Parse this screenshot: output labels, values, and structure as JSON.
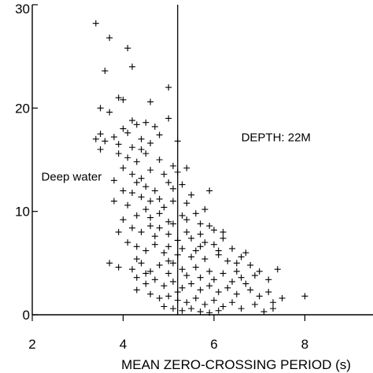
{
  "chart_data": {
    "type": "scatter",
    "title": "",
    "xlabel": "MEAN ZERO-CROSSING PERIOD (s)",
    "ylabel": "",
    "xlim": [
      2,
      9.5
    ],
    "ylim": [
      0,
      30
    ],
    "x_ticks": [
      2,
      4,
      6,
      8
    ],
    "y_ticks": [
      0,
      10,
      20,
      30
    ],
    "grid": false,
    "marker": "plus",
    "vertical_line_x": 5.2,
    "annotations": [
      {
        "text": "Deep water",
        "x": 2.2,
        "y": 13.0
      },
      {
        "text": "DEPTH: 22M",
        "x": 6.6,
        "y": 16.8
      }
    ],
    "series": [
      {
        "points": [
          [
            3.4,
            28.2
          ],
          [
            3.7,
            26.8
          ],
          [
            4.1,
            25.8
          ],
          [
            3.6,
            23.6
          ],
          [
            4.2,
            24.0
          ],
          [
            5.0,
            22.0
          ],
          [
            3.5,
            20.0
          ],
          [
            3.9,
            21.0
          ],
          [
            4.6,
            20.6
          ],
          [
            3.7,
            19.6
          ],
          [
            4.0,
            20.8
          ],
          [
            5.0,
            19.0
          ],
          [
            3.5,
            17.5
          ],
          [
            3.6,
            16.8
          ],
          [
            3.4,
            17.0
          ],
          [
            3.8,
            17.2
          ],
          [
            3.9,
            16.5
          ],
          [
            4.0,
            18.0
          ],
          [
            4.1,
            17.6
          ],
          [
            4.2,
            16.2
          ],
          [
            4.3,
            18.4
          ],
          [
            4.4,
            17.0
          ],
          [
            4.5,
            18.6
          ],
          [
            4.7,
            18.2
          ],
          [
            4.6,
            16.6
          ],
          [
            4.8,
            17.4
          ],
          [
            5.2,
            16.8
          ],
          [
            4.2,
            18.8
          ],
          [
            4.4,
            16.0
          ],
          [
            3.5,
            16.0
          ],
          [
            3.9,
            15.6
          ],
          [
            4.1,
            15.2
          ],
          [
            4.3,
            14.8
          ],
          [
            4.5,
            15.6
          ],
          [
            4.8,
            15.0
          ],
          [
            5.1,
            14.4
          ],
          [
            5.2,
            13.8
          ],
          [
            4.0,
            14.2
          ],
          [
            4.2,
            13.6
          ],
          [
            4.6,
            14.0
          ],
          [
            4.9,
            13.6
          ],
          [
            5.0,
            12.8
          ],
          [
            4.3,
            12.8
          ],
          [
            4.5,
            12.4
          ],
          [
            4.7,
            12.0
          ],
          [
            5.3,
            12.6
          ],
          [
            5.5,
            11.6
          ],
          [
            5.4,
            14.2
          ],
          [
            3.8,
            13.0
          ],
          [
            4.0,
            12.0
          ],
          [
            4.4,
            11.4
          ],
          [
            4.8,
            11.2
          ],
          [
            5.1,
            11.0
          ],
          [
            5.4,
            10.8
          ],
          [
            4.1,
            10.6
          ],
          [
            4.3,
            9.6
          ],
          [
            4.5,
            10.2
          ],
          [
            4.6,
            9.4
          ],
          [
            4.9,
            10.4
          ],
          [
            5.0,
            9.0
          ],
          [
            5.3,
            9.6
          ],
          [
            5.6,
            9.8
          ],
          [
            5.7,
            8.8
          ],
          [
            5.9,
            8.6
          ],
          [
            6.0,
            8.2
          ],
          [
            4.0,
            9.2
          ],
          [
            4.2,
            8.4
          ],
          [
            4.4,
            8.0
          ],
          [
            4.6,
            8.6
          ],
          [
            4.7,
            7.6
          ],
          [
            4.8,
            8.4
          ],
          [
            5.0,
            7.8
          ],
          [
            5.1,
            8.8
          ],
          [
            5.2,
            7.2
          ],
          [
            5.4,
            8.0
          ],
          [
            5.5,
            7.4
          ],
          [
            5.7,
            7.8
          ],
          [
            5.8,
            7.0
          ],
          [
            6.0,
            6.8
          ],
          [
            6.2,
            7.4
          ],
          [
            6.4,
            6.4
          ],
          [
            4.1,
            7.0
          ],
          [
            4.3,
            6.6
          ],
          [
            4.5,
            6.2
          ],
          [
            4.7,
            6.8
          ],
          [
            4.9,
            6.0
          ],
          [
            5.0,
            6.6
          ],
          [
            5.2,
            5.8
          ],
          [
            5.3,
            6.4
          ],
          [
            5.5,
            5.6
          ],
          [
            5.6,
            6.2
          ],
          [
            5.8,
            5.4
          ],
          [
            6.1,
            5.8
          ],
          [
            6.3,
            5.2
          ],
          [
            6.6,
            5.6
          ],
          [
            6.8,
            4.8
          ],
          [
            3.7,
            5.0
          ],
          [
            3.9,
            4.6
          ],
          [
            4.2,
            4.4
          ],
          [
            4.4,
            5.0
          ],
          [
            4.6,
            4.2
          ],
          [
            4.8,
            4.8
          ],
          [
            5.0,
            4.0
          ],
          [
            5.1,
            5.0
          ],
          [
            5.3,
            4.4
          ],
          [
            5.4,
            3.8
          ],
          [
            5.6,
            4.6
          ],
          [
            5.7,
            3.6
          ],
          [
            5.9,
            4.2
          ],
          [
            6.0,
            3.4
          ],
          [
            6.2,
            4.0
          ],
          [
            6.4,
            3.2
          ],
          [
            6.5,
            4.2
          ],
          [
            6.7,
            3.0
          ],
          [
            6.9,
            3.8
          ],
          [
            7.0,
            4.2
          ],
          [
            7.2,
            3.4
          ],
          [
            7.4,
            4.4
          ],
          [
            4.3,
            3.6
          ],
          [
            4.5,
            3.0
          ],
          [
            4.7,
            3.4
          ],
          [
            4.9,
            2.8
          ],
          [
            5.1,
            3.2
          ],
          [
            5.3,
            2.6
          ],
          [
            5.5,
            3.0
          ],
          [
            5.7,
            2.4
          ],
          [
            5.9,
            2.8
          ],
          [
            6.1,
            2.2
          ],
          [
            6.3,
            2.6
          ],
          [
            6.5,
            2.0
          ],
          [
            6.8,
            2.4
          ],
          [
            7.0,
            1.8
          ],
          [
            7.2,
            2.2
          ],
          [
            7.5,
            1.6
          ],
          [
            8.0,
            1.8
          ],
          [
            4.6,
            2.0
          ],
          [
            4.8,
            1.6
          ],
          [
            5.0,
            1.8
          ],
          [
            5.2,
            1.4
          ],
          [
            5.4,
            1.2
          ],
          [
            5.6,
            1.6
          ],
          [
            5.8,
            1.0
          ],
          [
            6.0,
            1.4
          ],
          [
            6.2,
            0.8
          ],
          [
            6.4,
            1.2
          ],
          [
            6.6,
            0.6
          ],
          [
            6.9,
            1.0
          ],
          [
            7.3,
            0.6
          ],
          [
            4.9,
            0.8
          ],
          [
            5.1,
            0.6
          ],
          [
            5.3,
            0.4
          ],
          [
            5.5,
            0.6
          ],
          [
            5.7,
            0.3
          ],
          [
            6.1,
            0.4
          ],
          [
            7.1,
            0.3
          ],
          [
            5.9,
            0.2
          ],
          [
            3.8,
            11.0
          ],
          [
            3.9,
            8.0
          ],
          [
            4.2,
            11.8
          ],
          [
            4.6,
            11.0
          ],
          [
            5.8,
            10.2
          ],
          [
            6.2,
            8.0
          ],
          [
            4.4,
            13.2
          ],
          [
            5.1,
            12.2
          ],
          [
            4.5,
            4.0
          ],
          [
            6.6,
            3.6
          ],
          [
            5.2,
            2.2
          ],
          [
            4.3,
            2.4
          ],
          [
            5.7,
            6.6
          ],
          [
            6.5,
            5.0
          ],
          [
            5.4,
            9.2
          ],
          [
            4.8,
            9.8
          ],
          [
            5.9,
            12.0
          ],
          [
            4.3,
            5.4
          ],
          [
            5.0,
            5.2
          ],
          [
            6.7,
            6.0
          ],
          [
            7.3,
            1.2
          ],
          [
            6.1,
            6.2
          ]
        ]
      }
    ]
  }
}
